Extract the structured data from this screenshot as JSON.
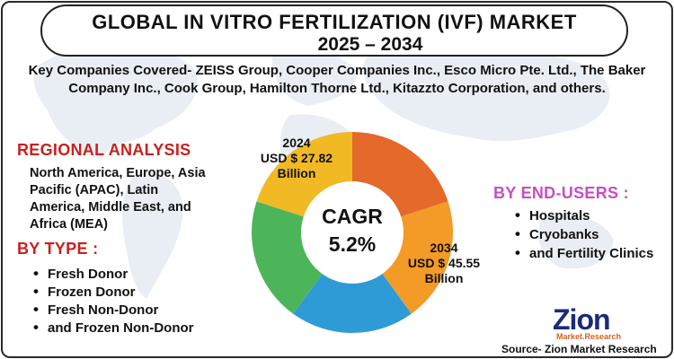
{
  "title": {
    "line1": "GLOBAL IN VITRO FERTILIZATION (IVF) MARKET",
    "line2": "2025 – 2034"
  },
  "companies_text": "Key Companies Covered- ZEISS Group, Cooper Companies Inc., Esco Micro Pte. Ltd., The Baker Company Inc., Cook Group, Hamilton Thorne Ltd., Kitazzto Corporation, and others.",
  "regional": {
    "title": "REGIONAL ANALYSIS",
    "text": "North America, Europe, Asia Pacific (APAC), Latin America, Middle East, and Africa (MEA)"
  },
  "by_type": {
    "title": "BY TYPE :",
    "items": [
      "Fresh Donor",
      "Frozen Donor",
      "Fresh Non-Donor",
      "and Frozen Non-Donor"
    ]
  },
  "by_end_users": {
    "title": "BY END-USERS :",
    "items": [
      "Hospitals",
      "Cryobanks",
      "and Fertility Clinics"
    ]
  },
  "center": {
    "cagr_label": "CAGR",
    "cagr_value": "5.2%"
  },
  "values": {
    "y2024_year": "2024",
    "y2024_amount": "USD $ 27.82",
    "y2024_unit": "Billion",
    "y2034_year": "2034",
    "y2034_amount": "USD $ 45.55",
    "y2034_unit": "Billion"
  },
  "donut_segments": [
    {
      "color": "#e4692a",
      "fraction": 0.2
    },
    {
      "color": "#f49a27",
      "fraction": 0.2
    },
    {
      "color": "#2f9bd6",
      "fraction": 0.2
    },
    {
      "color": "#4cb55a",
      "fraction": 0.2
    },
    {
      "color": "#f1b924",
      "fraction": 0.2
    }
  ],
  "colors": {
    "section_title": "#c8211e",
    "end_users_title": "#c54fc3",
    "logo_blue": "#1b2a7a",
    "logo_orange": "#d8611c"
  },
  "logo": {
    "main": "Zion",
    "sub": "Market.Research"
  },
  "source": "Source- Zion Market Research",
  "icons": [
    "world-map-background-icon"
  ]
}
